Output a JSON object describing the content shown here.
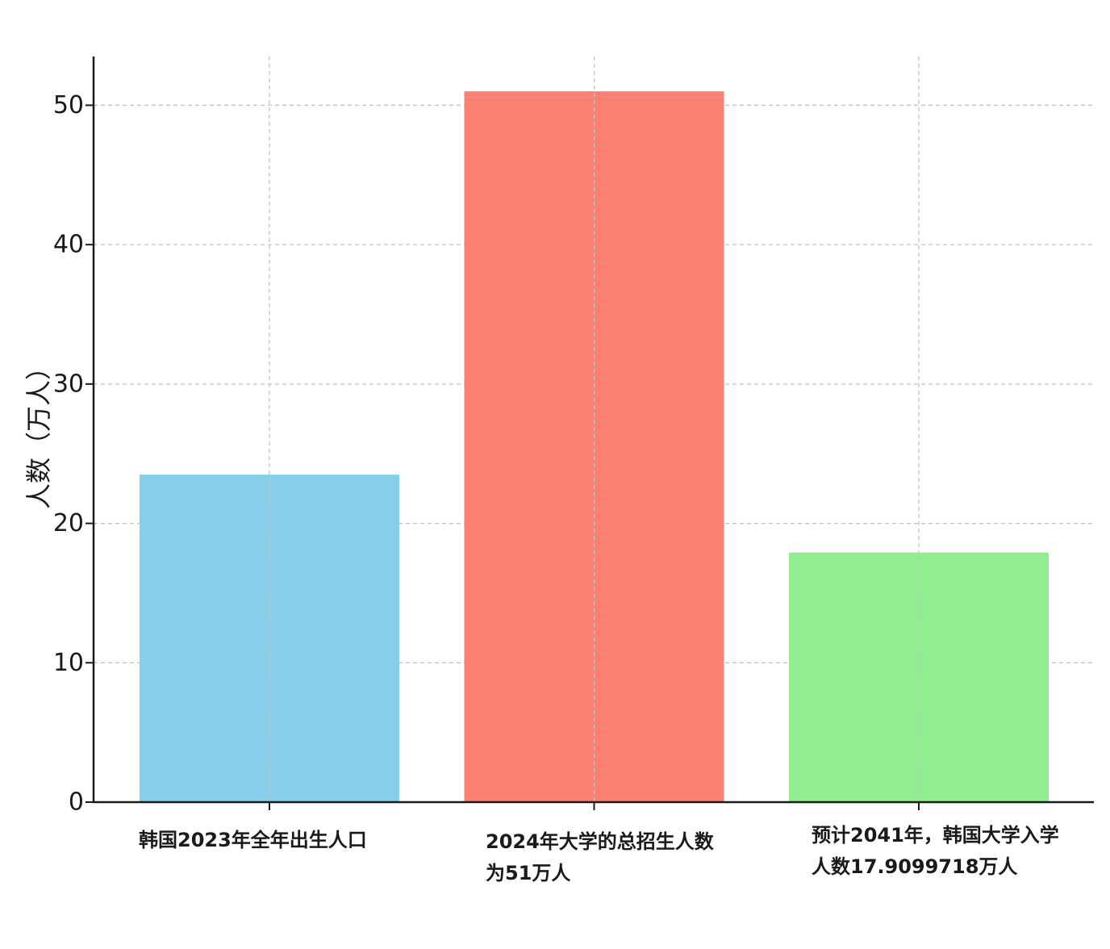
{
  "chart_data": {
    "type": "bar",
    "title": "",
    "xlabel": "",
    "ylabel": "人数（万人）",
    "categories": [
      "韩国2023年全年出生人口",
      "2024年大学的总招生人数为51万人",
      "预计2041年，韩国大学入学人数17.9099718万人"
    ],
    "category_label_lines": [
      [
        "韩国2023年全年出生人口"
      ],
      [
        "2024年大学的总招生人数",
        "为51万人"
      ],
      [
        "预计2041年，韩国大学入学",
        "人数17.9099718万人"
      ]
    ],
    "values": [
      23.5,
      51,
      17.91
    ],
    "colors": [
      "#87CEEB",
      "#FA8072",
      "#90EE90"
    ],
    "ylim": [
      0,
      53.5
    ],
    "yticks": [
      0,
      10,
      20,
      30,
      40,
      50
    ],
    "grid": true,
    "legend": "none"
  }
}
